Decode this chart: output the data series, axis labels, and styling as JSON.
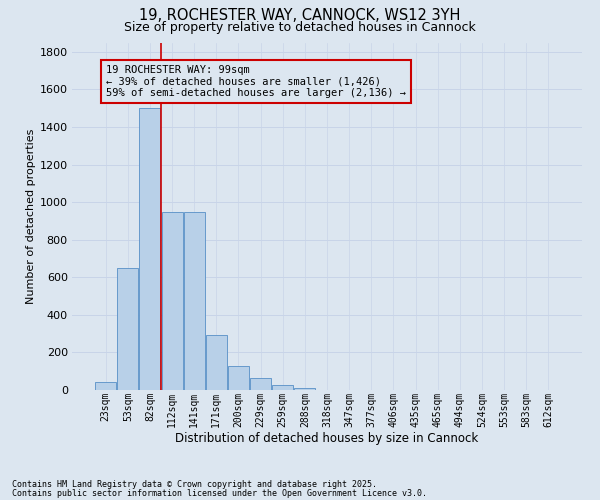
{
  "title1": "19, ROCHESTER WAY, CANNOCK, WS12 3YH",
  "title2": "Size of property relative to detached houses in Cannock",
  "xlabel": "Distribution of detached houses by size in Cannock",
  "ylabel": "Number of detached properties",
  "categories": [
    "23sqm",
    "53sqm",
    "82sqm",
    "112sqm",
    "141sqm",
    "171sqm",
    "200sqm",
    "229sqm",
    "259sqm",
    "288sqm",
    "318sqm",
    "347sqm",
    "377sqm",
    "406sqm",
    "435sqm",
    "465sqm",
    "494sqm",
    "524sqm",
    "553sqm",
    "583sqm",
    "612sqm"
  ],
  "values": [
    40,
    650,
    1500,
    950,
    950,
    295,
    130,
    65,
    25,
    8,
    0,
    0,
    0,
    0,
    0,
    0,
    0,
    0,
    0,
    0,
    0
  ],
  "bar_color": "#b8d0e8",
  "bar_edge_color": "#6699cc",
  "grid_color": "#c8d4e8",
  "background_color": "#dce6f0",
  "vline_color": "#cc0000",
  "annotation_text": "19 ROCHESTER WAY: 99sqm\n← 39% of detached houses are smaller (1,426)\n59% of semi-detached houses are larger (2,136) →",
  "annotation_box_color": "#cc0000",
  "ylim": [
    0,
    1850
  ],
  "yticks": [
    0,
    200,
    400,
    600,
    800,
    1000,
    1200,
    1400,
    1600,
    1800
  ],
  "footer1": "Contains HM Land Registry data © Crown copyright and database right 2025.",
  "footer2": "Contains public sector information licensed under the Open Government Licence v3.0."
}
